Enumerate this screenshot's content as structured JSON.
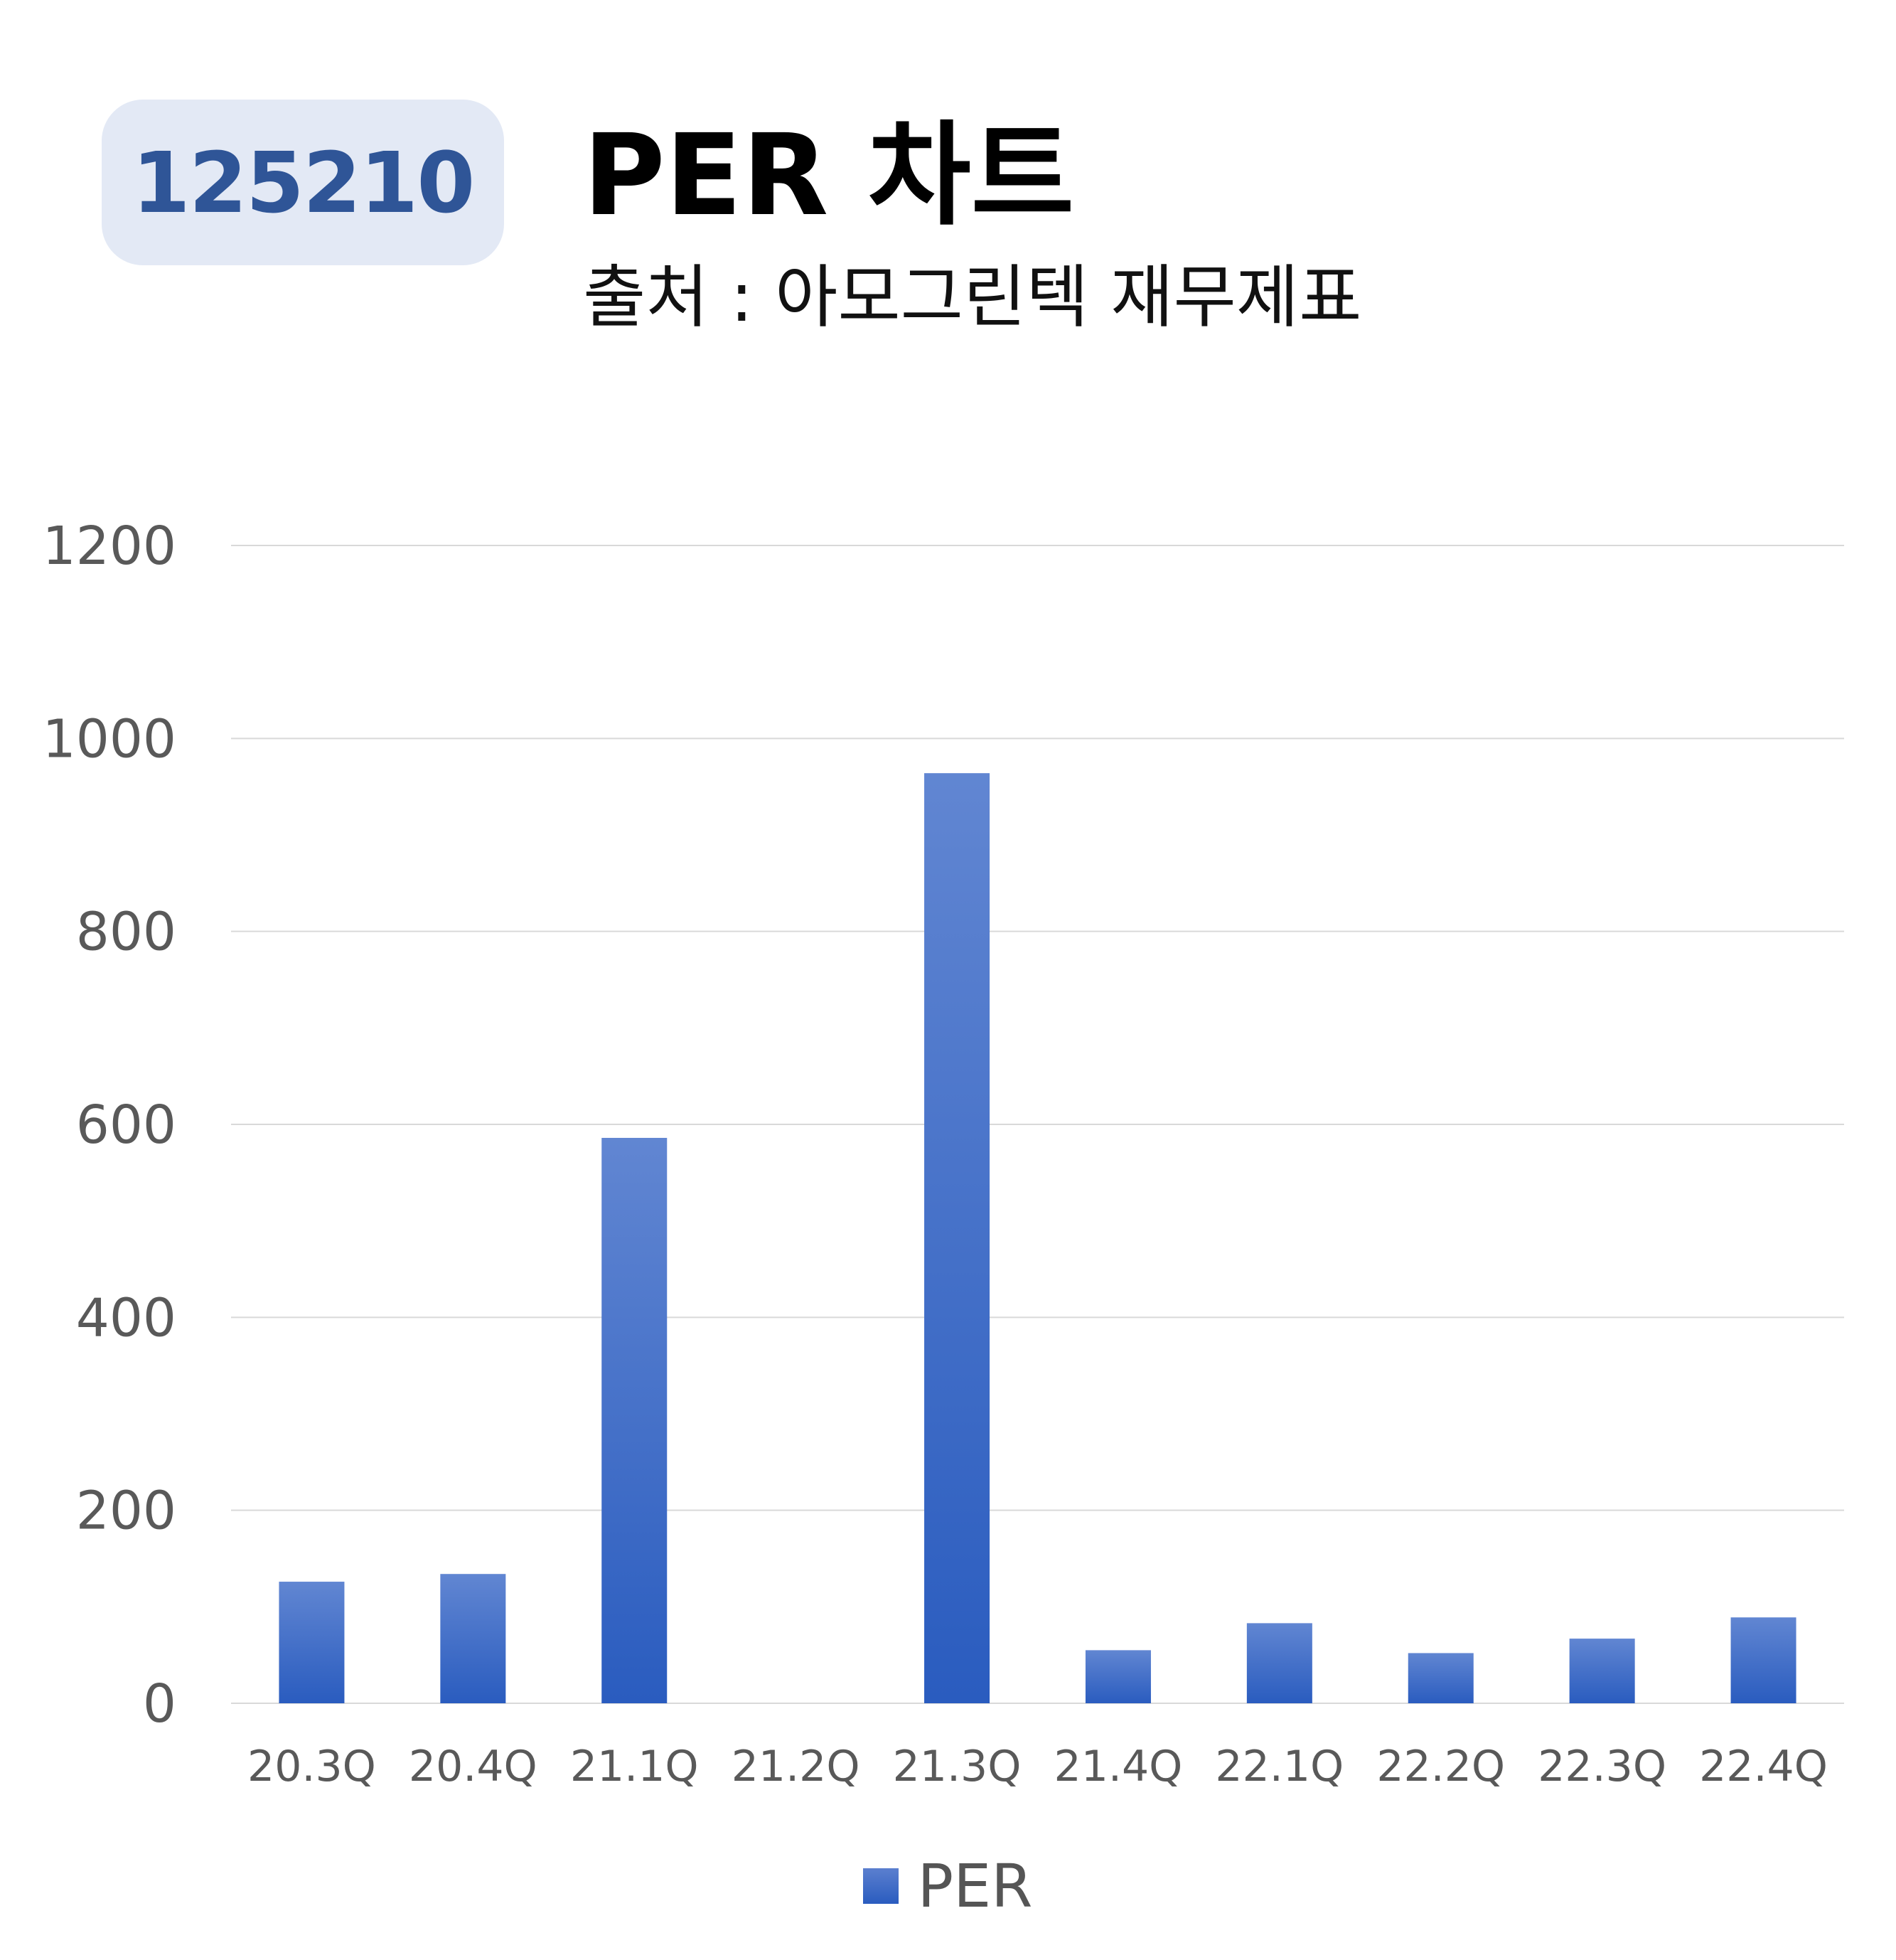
{
  "header": {
    "code": "125210",
    "title": "PER 차트",
    "subtitle": "출처 : 아모그린텍 재무제표"
  },
  "colors": {
    "bar_top": "#6186d2",
    "bar_bottom": "#2a5cbf",
    "badge_bg": "#e3e9f5",
    "badge_text": "#2f5597",
    "grid": "#d9d9d9",
    "axis_text": "#595959"
  },
  "chart_data": {
    "type": "bar",
    "title": "",
    "xlabel": "",
    "ylabel": "",
    "ylim": [
      0,
      1200
    ],
    "yticks": [
      0,
      200,
      400,
      600,
      800,
      1000,
      1200
    ],
    "grid": true,
    "legend": "bottom-center",
    "categories": [
      "20.3Q",
      "20.4Q",
      "21.1Q",
      "21.2Q",
      "21.3Q",
      "21.4Q",
      "22.1Q",
      "22.2Q",
      "22.3Q",
      "22.4Q"
    ],
    "series": [
      {
        "name": "PER",
        "values": [
          126,
          134,
          586,
          0,
          964,
          55,
          83,
          52,
          67,
          89
        ]
      }
    ]
  }
}
